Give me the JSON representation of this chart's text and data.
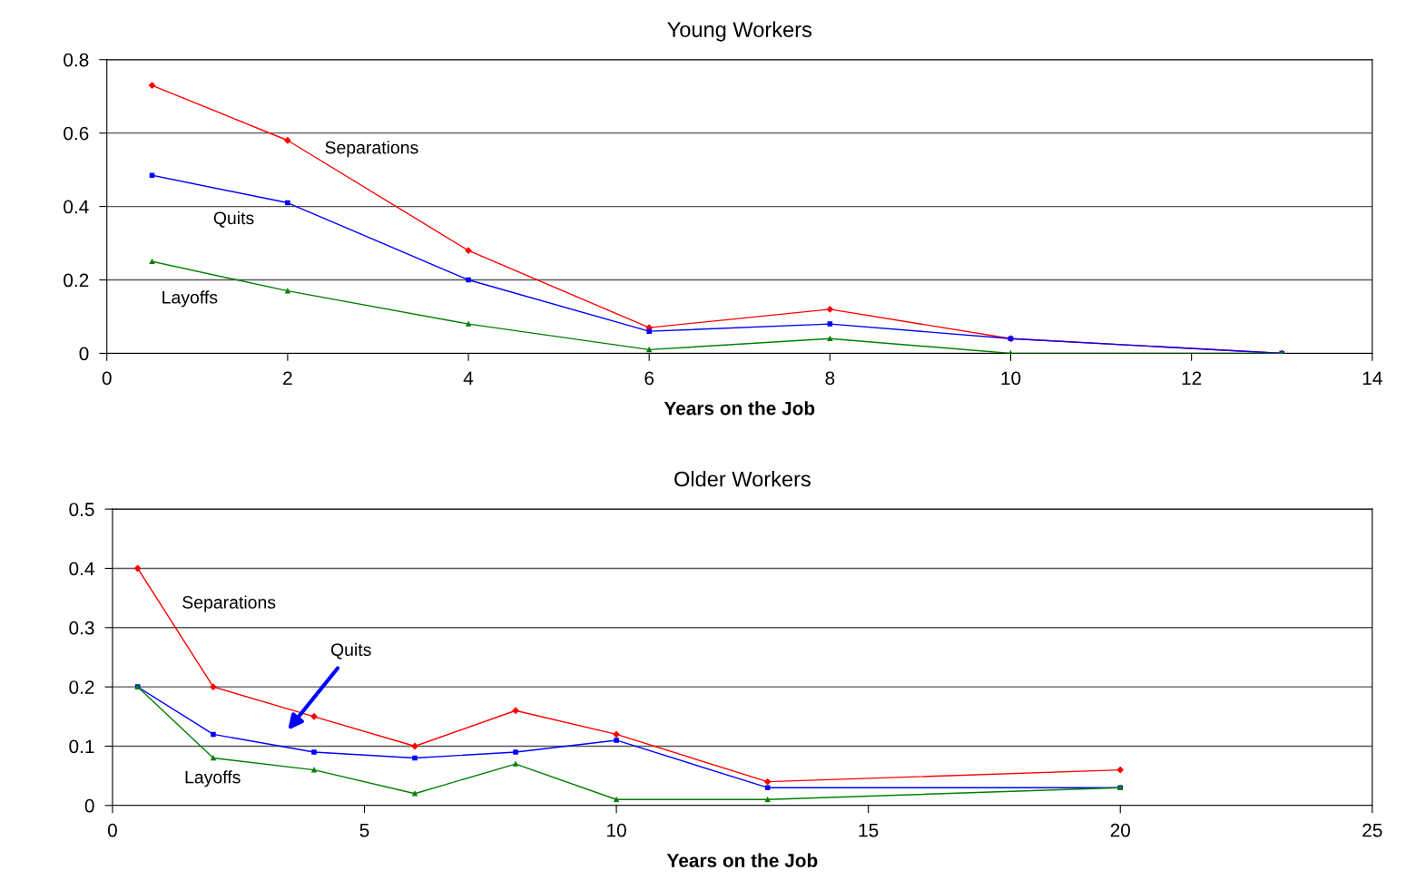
{
  "chart_data": [
    {
      "type": "line",
      "title": "Young Workers",
      "xlabel": "Years on the Job",
      "x": [
        0.5,
        2,
        4,
        6,
        8,
        10,
        13
      ],
      "xlim": [
        0,
        14
      ],
      "xticks": [
        0,
        2,
        4,
        6,
        8,
        10,
        12,
        14
      ],
      "ylim": [
        0,
        0.8
      ],
      "yticks": [
        0,
        0.2,
        0.4,
        0.6,
        0.8
      ],
      "grid": "y",
      "legend": false,
      "series": [
        {
          "name": "Separations",
          "color": "#ff0000",
          "marker": "diamond",
          "values": [
            0.73,
            0.58,
            0.28,
            0.07,
            0.12,
            0.04,
            0
          ]
        },
        {
          "name": "Quits",
          "color": "#0000ff",
          "marker": "square",
          "values": [
            0.485,
            0.41,
            0.2,
            0.06,
            0.08,
            0.04,
            0
          ]
        },
        {
          "name": "Layoffs",
          "color": "#008000",
          "marker": "triangle",
          "values": [
            0.25,
            0.17,
            0.08,
            0.01,
            0.04,
            0,
            0
          ]
        }
      ]
    },
    {
      "type": "line",
      "title": "Older Workers",
      "xlabel": "Years on the Job",
      "x": [
        0.5,
        2,
        4,
        6,
        8,
        10,
        13,
        20
      ],
      "xlim": [
        0,
        25
      ],
      "xticks": [
        0,
        5,
        10,
        15,
        20,
        25
      ],
      "ylim": [
        0,
        0.5
      ],
      "yticks": [
        0,
        0.1,
        0.2,
        0.3,
        0.4,
        0.5
      ],
      "grid": "y",
      "legend": false,
      "series": [
        {
          "name": "Separations",
          "color": "#ff0000",
          "marker": "diamond",
          "values": [
            0.4,
            0.2,
            0.15,
            0.1,
            0.16,
            0.12,
            0.04,
            0.06
          ]
        },
        {
          "name": "Quits",
          "color": "#0000ff",
          "marker": "square",
          "values": [
            0.2,
            0.12,
            0.09,
            0.08,
            0.09,
            0.11,
            0.03,
            0.03
          ]
        },
        {
          "name": "Layoffs",
          "color": "#008000",
          "marker": "triangle",
          "values": [
            0.2,
            0.08,
            0.06,
            0.02,
            0.07,
            0.01,
            0.01,
            0.03
          ]
        }
      ]
    }
  ]
}
